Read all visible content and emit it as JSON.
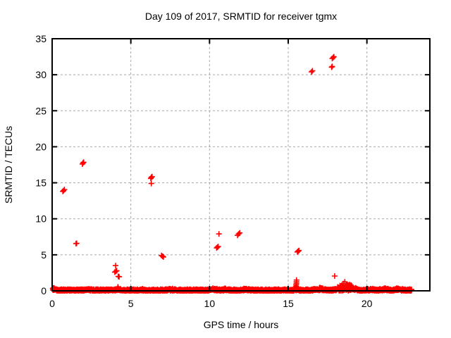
{
  "page": {
    "background": "#ffffff"
  },
  "chart_data": {
    "type": "scatter",
    "title": "Day 109 of 2017, SRMTID for receiver tgmx",
    "xlabel": "GPS time / hours",
    "ylabel": "SRMTID / TECUs",
    "xlim": [
      0,
      24
    ],
    "ylim": [
      0,
      35
    ],
    "xticks": [
      0,
      5,
      10,
      15,
      20
    ],
    "yticks": [
      0,
      5,
      10,
      15,
      20,
      25,
      30,
      35
    ],
    "grid": true,
    "grid_color": "#a8a8a8",
    "border_color": "#000000",
    "marker_style": "plus",
    "marker_color": "#ff0000",
    "legend": "none",
    "outlier_points": [
      [
        0.68,
        13.8
      ],
      [
        0.72,
        13.9
      ],
      [
        0.78,
        14.05
      ],
      [
        1.52,
        6.55
      ],
      [
        1.56,
        6.6
      ],
      [
        1.92,
        17.6
      ],
      [
        1.96,
        17.75
      ],
      [
        2.0,
        17.85
      ],
      [
        4.03,
        3.5
      ],
      [
        3.98,
        2.6
      ],
      [
        4.05,
        2.7
      ],
      [
        4.1,
        2.8
      ],
      [
        4.2,
        2.0
      ],
      [
        4.26,
        1.95
      ],
      [
        4.18,
        0.55
      ],
      [
        6.27,
        15.6
      ],
      [
        6.3,
        15.75
      ],
      [
        6.35,
        15.85
      ],
      [
        6.3,
        14.9
      ],
      [
        6.95,
        4.9
      ],
      [
        7.02,
        4.8
      ],
      [
        7.07,
        4.7
      ],
      [
        10.45,
        5.95
      ],
      [
        10.5,
        6.05
      ],
      [
        10.55,
        6.15
      ],
      [
        10.6,
        7.9
      ],
      [
        11.78,
        7.7
      ],
      [
        11.85,
        7.9
      ],
      [
        11.92,
        8.05
      ],
      [
        15.58,
        5.4
      ],
      [
        15.63,
        5.5
      ],
      [
        15.68,
        5.6
      ],
      [
        15.5,
        0.45
      ],
      [
        15.5,
        0.65
      ],
      [
        15.5,
        0.85
      ],
      [
        15.52,
        1.05
      ],
      [
        15.52,
        1.25
      ],
      [
        15.53,
        1.5
      ],
      [
        16.48,
        30.4
      ],
      [
        16.54,
        30.55
      ],
      [
        17.8,
        32.25
      ],
      [
        17.86,
        32.4
      ],
      [
        17.9,
        32.5
      ],
      [
        17.76,
        31.05
      ],
      [
        17.8,
        31.15
      ],
      [
        17.95,
        2.05
      ]
    ],
    "baseline_band": {
      "x_range": [
        0.02,
        22.85
      ],
      "y_typical_max": 0.22,
      "bumps": [
        {
          "x": 0.15,
          "w": 0.3,
          "h": 0.35
        },
        {
          "x": 2.3,
          "w": 0.3,
          "h": 0.2
        },
        {
          "x": 4.2,
          "w": 0.25,
          "h": 0.3
        },
        {
          "x": 5.6,
          "w": 0.3,
          "h": 0.18
        },
        {
          "x": 7.5,
          "w": 0.4,
          "h": 0.22
        },
        {
          "x": 10.3,
          "w": 0.4,
          "h": 0.28
        },
        {
          "x": 11.0,
          "w": 0.3,
          "h": 0.18
        },
        {
          "x": 12.3,
          "w": 0.4,
          "h": 0.22
        },
        {
          "x": 15.5,
          "w": 0.12,
          "h": 1.0
        },
        {
          "x": 17.0,
          "w": 0.5,
          "h": 0.38
        },
        {
          "x": 18.65,
          "w": 0.8,
          "h": 1.15
        },
        {
          "x": 20.2,
          "w": 0.3,
          "h": 0.3
        },
        {
          "x": 21.1,
          "w": 0.4,
          "h": 0.25
        },
        {
          "x": 22.0,
          "w": 0.4,
          "h": 0.25
        }
      ]
    }
  }
}
